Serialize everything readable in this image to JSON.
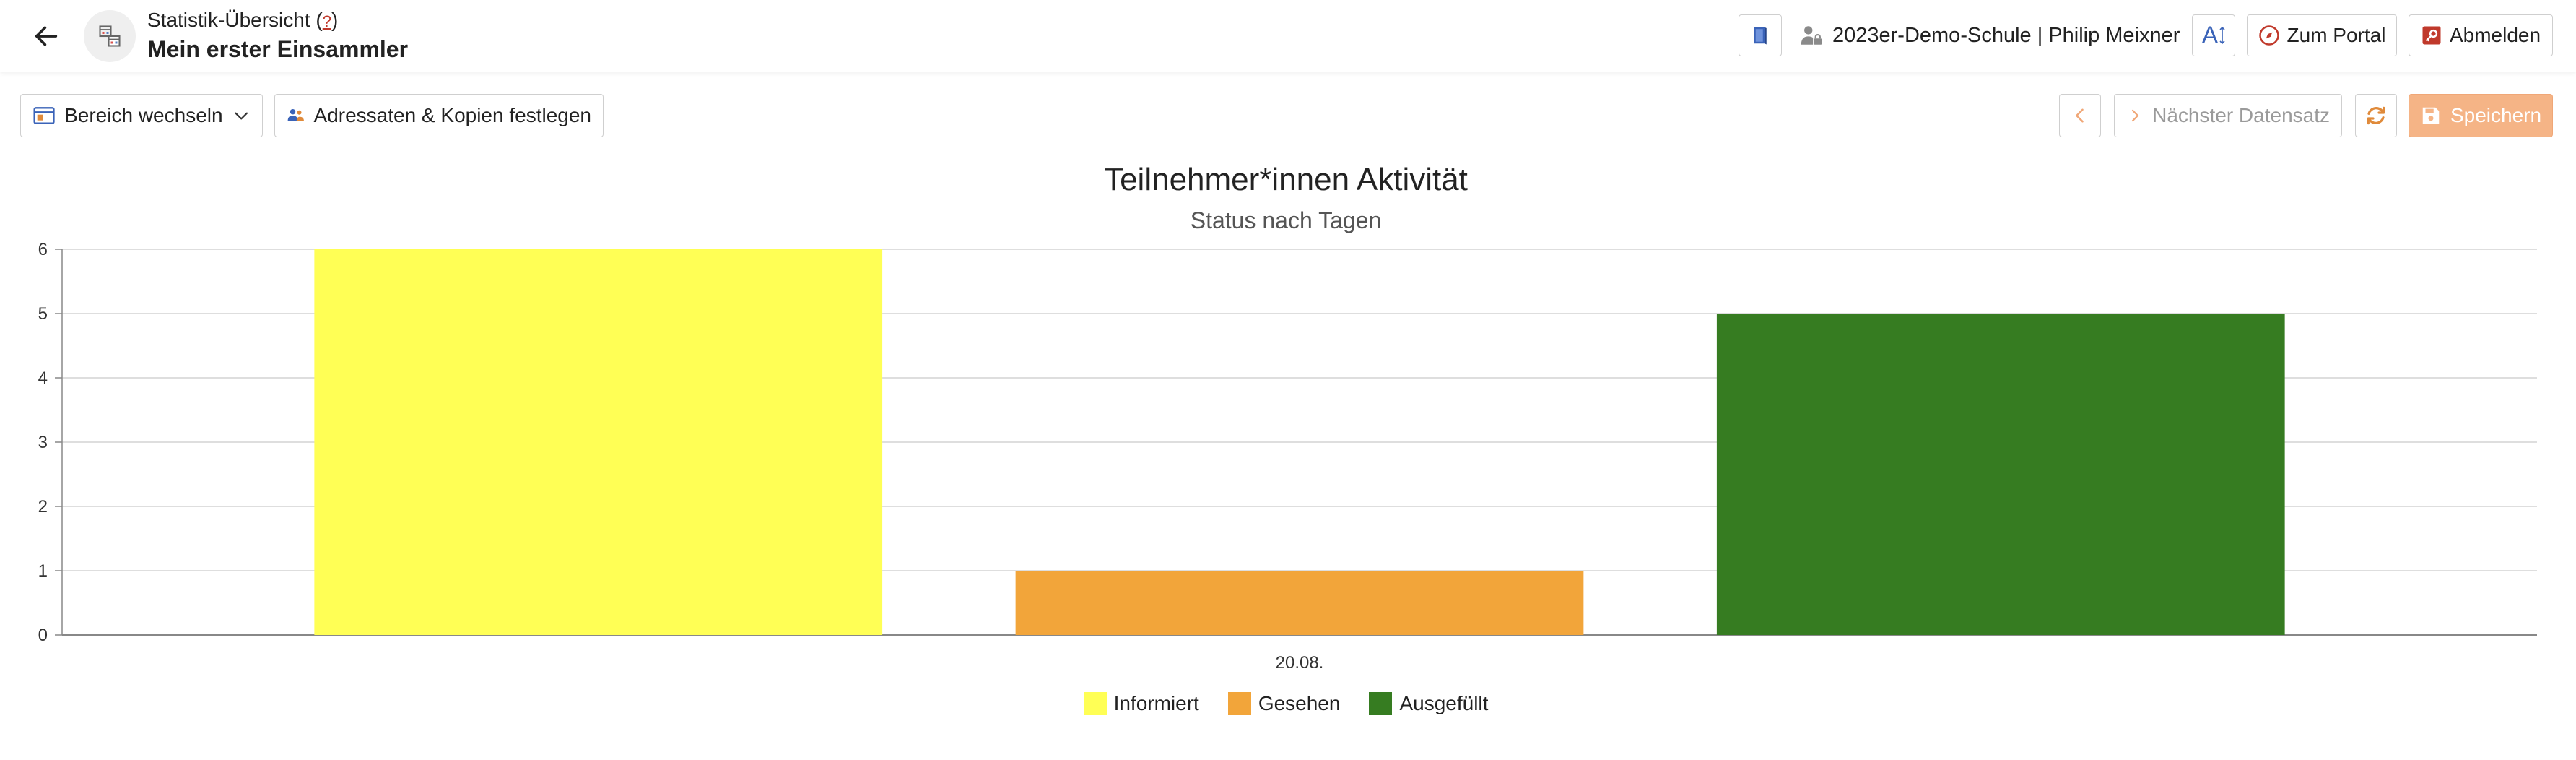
{
  "header": {
    "subtitle": "Statistik-Übersicht",
    "help_link": "?",
    "title": "Mein erster Einsammler",
    "user": "2023er-Demo-Schule | Philip Meixner",
    "font_size_label": "A",
    "portal_label": "Zum Portal",
    "logout_label": "Abmelden"
  },
  "toolbar": {
    "switch_area_label": "Bereich wechseln",
    "recipients_label": "Adressaten & Kopien festlegen",
    "next_record_label": "Nächster Datensatz",
    "save_label": "Speichern"
  },
  "colors": {
    "informiert": "#ffff55",
    "gesehen": "#f2a53a",
    "ausgefuellt": "#367c21",
    "save_accent": "#f5b486"
  },
  "chart_data": {
    "type": "bar",
    "title": "Teilnehmer*innen Aktivität",
    "subtitle": "Status nach Tagen",
    "categories": [
      "20.08."
    ],
    "series": [
      {
        "name": "Informiert",
        "values": [
          6
        ],
        "color": "#ffff55"
      },
      {
        "name": "Gesehen",
        "values": [
          1
        ],
        "color": "#f2a53a"
      },
      {
        "name": "Ausgefüllt",
        "values": [
          5
        ],
        "color": "#367c21"
      }
    ],
    "ylim": [
      0,
      6
    ],
    "yticks": [
      0,
      1,
      2,
      3,
      4,
      5,
      6
    ],
    "grid": true,
    "legend_position": "bottom"
  }
}
